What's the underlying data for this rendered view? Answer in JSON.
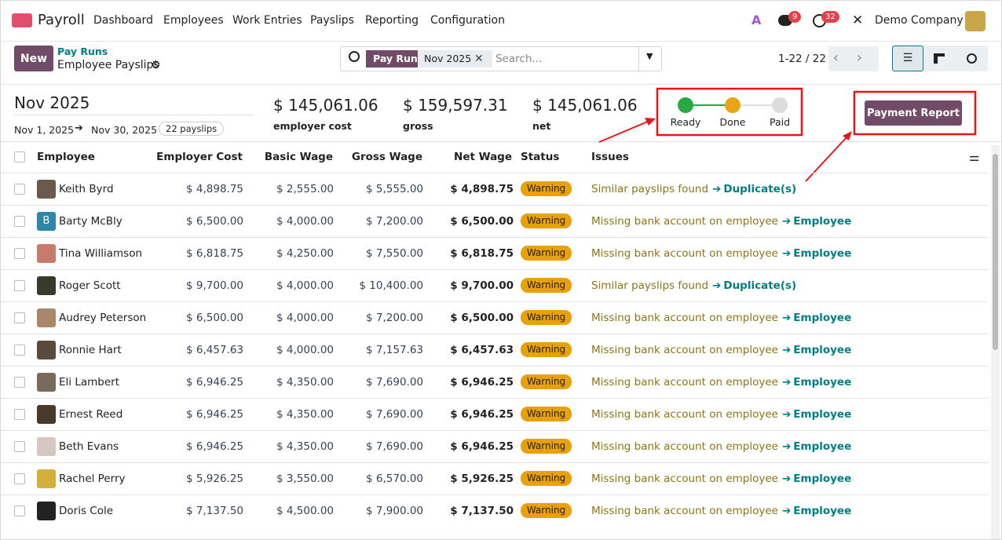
{
  "navbar": {
    "app": "Payroll",
    "menu": [
      "Dashboard",
      "Employees",
      "Work Entries",
      "Payslips",
      "Reporting",
      "Configuration"
    ],
    "chat_badge": 9,
    "activity_badge": 32,
    "company": "Demo Company"
  },
  "control": {
    "new_button": "New",
    "breadcrumb": "Pay Runs",
    "title": "Employee Payslips",
    "facet_label": "Pay Run",
    "facet_value": "Nov 2025",
    "search_placeholder": "Search...",
    "pager": "1-22 / 22"
  },
  "summary": {
    "period": "Nov 2025",
    "start": "Nov 1, 2025",
    "end": "Nov 30, 2025",
    "count": "22 payslips",
    "totals": [
      {
        "amount": "$ 145,061.06",
        "label": "employer cost"
      },
      {
        "amount": "$ 159,597.31",
        "label": "gross"
      },
      {
        "amount": "$ 145,061.06",
        "label": "net"
      }
    ],
    "status_steps": [
      "Ready",
      "Done",
      "Paid"
    ],
    "payment_report": "Payment Report"
  },
  "table": {
    "columns": [
      "Employee",
      "Employer Cost",
      "Basic Wage",
      "Gross Wage",
      "Net Wage",
      "Status",
      "Issues"
    ],
    "rows": [
      {
        "name": "Keith Byrd",
        "employer_cost": "$ 4,898.75",
        "basic": "$ 2,555.00",
        "gross": "$ 5,555.00",
        "net": "$ 4,898.75",
        "status": "Warning",
        "issue": "Similar payslips found",
        "link": "Duplicate(s)"
      },
      {
        "initial": "B",
        "name": "Barty McBly",
        "employer_cost": "$ 6,500.00",
        "basic": "$ 4,000.00",
        "gross": "$ 7,200.00",
        "net": "$ 6,500.00",
        "status": "Warning",
        "issue": "Missing bank account on employee",
        "link": "Employee"
      },
      {
        "name": "Tina Williamson",
        "employer_cost": "$ 6,818.75",
        "basic": "$ 4,250.00",
        "gross": "$ 7,550.00",
        "net": "$ 6,818.75",
        "status": "Warning",
        "issue": "Missing bank account on employee",
        "link": "Employee"
      },
      {
        "name": "Roger Scott",
        "employer_cost": "$ 9,700.00",
        "basic": "$ 4,000.00",
        "gross": "$ 10,400.00",
        "net": "$ 9,700.00",
        "status": "Warning",
        "issue": "Similar payslips found",
        "link": "Duplicate(s)"
      },
      {
        "name": "Audrey Peterson",
        "employer_cost": "$ 6,500.00",
        "basic": "$ 4,000.00",
        "gross": "$ 7,200.00",
        "net": "$ 6,500.00",
        "status": "Warning",
        "issue": "Missing bank account on employee",
        "link": "Employee"
      },
      {
        "name": "Ronnie Hart",
        "employer_cost": "$ 6,457.63",
        "basic": "$ 4,000.00",
        "gross": "$ 7,157.63",
        "net": "$ 6,457.63",
        "status": "Warning",
        "issue": "Missing bank account on employee",
        "link": "Employee"
      },
      {
        "name": "Eli Lambert",
        "employer_cost": "$ 6,946.25",
        "basic": "$ 4,350.00",
        "gross": "$ 7,690.00",
        "net": "$ 6,946.25",
        "status": "Warning",
        "issue": "Missing bank account on employee",
        "link": "Employee"
      },
      {
        "name": "Ernest Reed",
        "employer_cost": "$ 6,946.25",
        "basic": "$ 4,350.00",
        "gross": "$ 7,690.00",
        "net": "$ 6,946.25",
        "status": "Warning",
        "issue": "Missing bank account on employee",
        "link": "Employee"
      },
      {
        "name": "Beth Evans",
        "employer_cost": "$ 6,946.25",
        "basic": "$ 4,350.00",
        "gross": "$ 7,690.00",
        "net": "$ 6,946.25",
        "status": "Warning",
        "issue": "Missing bank account on employee",
        "link": "Employee"
      },
      {
        "name": "Rachel Perry",
        "employer_cost": "$ 5,926.25",
        "basic": "$ 3,550.00",
        "gross": "$ 6,570.00",
        "net": "$ 5,926.25",
        "status": "Warning",
        "issue": "Missing bank account on employee",
        "link": "Employee"
      },
      {
        "name": "Doris Cole",
        "employer_cost": "$ 7,137.50",
        "basic": "$ 4,500.00",
        "gross": "$ 7,900.00",
        "net": "$ 7,137.50",
        "status": "Warning",
        "issue": "Missing bank account on employee",
        "link": "Employee"
      }
    ]
  }
}
